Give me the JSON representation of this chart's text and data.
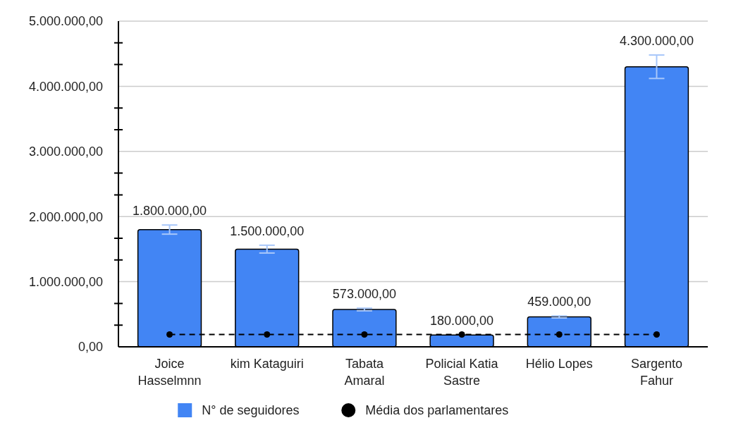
{
  "chart_data": {
    "type": "bar",
    "categories": [
      "Joice\nHasselmnn",
      "kim Kataguiri",
      "Tabata\nAmaral",
      "Policial Katia\nSastre",
      "Hélio Lopes",
      "Sargento\nFahur"
    ],
    "series": [
      {
        "name": "N° de seguidores",
        "color": "#4285f4",
        "values": [
          1800000,
          1500000,
          573000,
          180000,
          459000,
          4300000
        ],
        "errors": [
          70000,
          60000,
          20000,
          null,
          15000,
          180000
        ],
        "value_labels": [
          "1.800.000,00",
          "1.500.000,00",
          "573.000,00",
          "180.000,00",
          "459.000,00",
          "4.300.000,00"
        ]
      },
      {
        "name": "Média dos parlamentares",
        "type": "line",
        "color": "#000000",
        "values": [
          190000,
          190000,
          190000,
          190000,
          190000,
          190000
        ],
        "line_style": "dashed",
        "marker": "circle"
      }
    ],
    "ylim": [
      0,
      5000000
    ],
    "yticks": [
      {
        "value": 0,
        "label": "0,00"
      },
      {
        "value": 333333,
        "label": null
      },
      {
        "value": 666667,
        "label": null
      },
      {
        "value": 1000000,
        "label": "1.000.000,00"
      },
      {
        "value": 1333333,
        "label": null
      },
      {
        "value": 1666667,
        "label": null
      },
      {
        "value": 2000000,
        "label": "2.000.000,00"
      },
      {
        "value": 2333333,
        "label": null
      },
      {
        "value": 2666667,
        "label": null
      },
      {
        "value": 3000000,
        "label": "3.000.000,00"
      },
      {
        "value": 3333333,
        "label": null
      },
      {
        "value": 3666667,
        "label": null
      },
      {
        "value": 4000000,
        "label": "4.000.000,00"
      },
      {
        "value": 4333333,
        "label": null
      },
      {
        "value": 4666667,
        "label": null
      },
      {
        "value": 5000000,
        "label": "5.000.000,00"
      }
    ],
    "grid": "y",
    "legend": "bottom"
  }
}
